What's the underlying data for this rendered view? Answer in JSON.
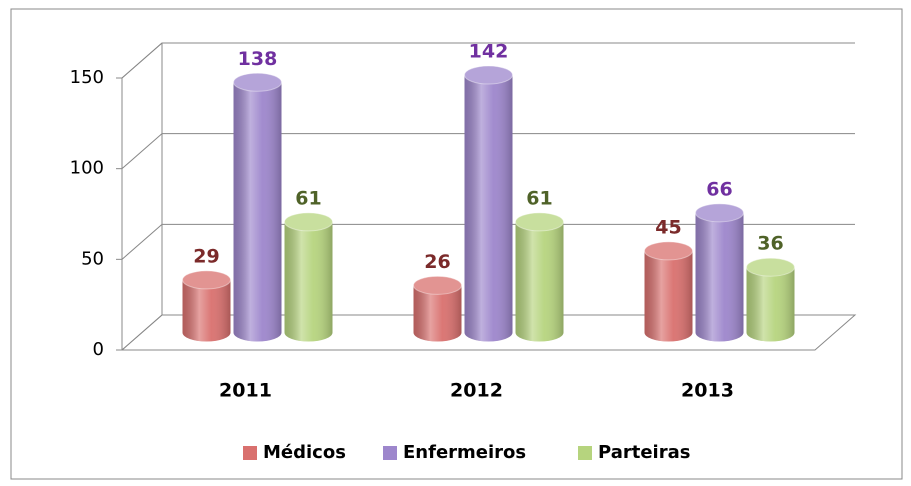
{
  "chart_data": {
    "type": "bar3d",
    "categories": [
      "2011",
      "2012",
      "2013"
    ],
    "series": [
      {
        "name": "Médicos",
        "color": "#d9706e",
        "label_color": "#7b2a2a",
        "values": [
          29,
          26,
          45
        ]
      },
      {
        "name": "Enfermeiros",
        "color": "#9d86cc",
        "label_color": "#7030a0",
        "values": [
          138,
          142,
          66
        ]
      },
      {
        "name": "Parteiras",
        "color": "#b6d47e",
        "label_color": "#4f6228",
        "values": [
          61,
          61,
          36
        ]
      }
    ],
    "ylim": [
      0,
      150
    ],
    "yticks": [
      0,
      50,
      100,
      150
    ],
    "grid": true,
    "legend": "bottom"
  }
}
